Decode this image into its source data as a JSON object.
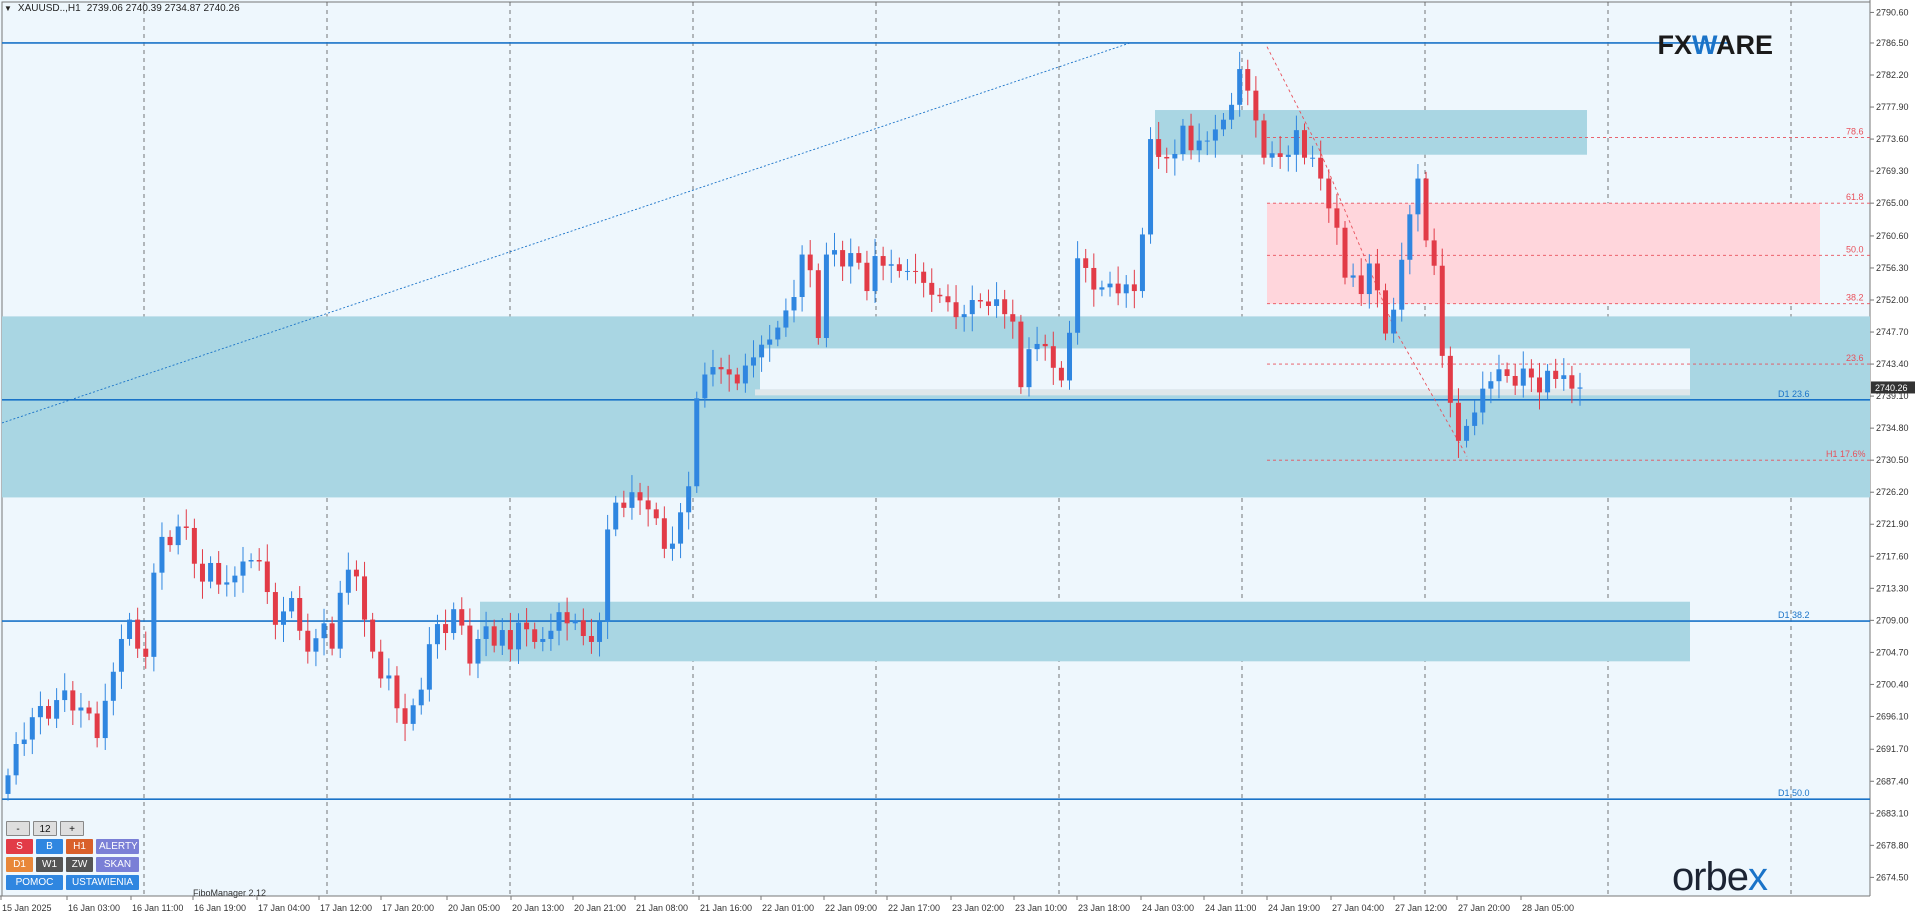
{
  "header": {
    "symbol": "XAUUSD..,H1",
    "ohlc": "2739.06 2740.39 2734.87 2740.26"
  },
  "brand": {
    "left": "FX",
    "mid": "W",
    "right": "ARE"
  },
  "footer_brand": {
    "left": "orbe",
    "x": "x"
  },
  "fibo_manager": "FiboManager 2.12",
  "panel": {
    "minus": "-",
    "count": "12",
    "plus": "+",
    "s": "S",
    "b": "B",
    "h1": "H1",
    "alerty": "ALERTY",
    "d1": "D1",
    "w1": "W1",
    "zw": "ZW",
    "skan": "SKAN",
    "pomoc": "POMOC",
    "ustawienia": "USTAWIENIA",
    "colors": {
      "s": "#e23b47",
      "b": "#2f86e0",
      "h1": "#d9602a",
      "alerty": "#7a7fd6",
      "d1": "#e8873a",
      "w1": "#555555",
      "zw": "#555555",
      "skan": "#7a7fd6",
      "pomoc": "#2f86e0",
      "ustawienia": "#2f86e0"
    }
  },
  "chart_data": {
    "type": "candlestick",
    "y_min": 2672,
    "y_max": 2792,
    "price_labels": [
      "2790.60",
      "2786.50",
      "2782.20",
      "2777.90",
      "2773.60",
      "2769.30",
      "2765.00",
      "2760.60",
      "2756.30",
      "2752.00",
      "2747.70",
      "2743.40",
      "2739.10",
      "2734.80",
      "2730.50",
      "2726.20",
      "2721.90",
      "2717.60",
      "2713.30",
      "2709.00",
      "2704.70",
      "2700.40",
      "2696.10",
      "2691.70",
      "2687.40",
      "2683.10",
      "2678.80",
      "2674.50"
    ],
    "current_price": "2740.26",
    "time_labels": [
      "15 Jan 2025",
      "16 Jan 03:00",
      "16 Jan 11:00",
      "16 Jan 19:00",
      "17 Jan 04:00",
      "17 Jan 12:00",
      "17 Jan 20:00",
      "20 Jan 05:00",
      "20 Jan 13:00",
      "20 Jan 21:00",
      "21 Jan 08:00",
      "21 Jan 16:00",
      "22 Jan 01:00",
      "22 Jan 09:00",
      "22 Jan 17:00",
      "23 Jan 02:00",
      "23 Jan 10:00",
      "23 Jan 18:00",
      "24 Jan 03:00",
      "24 Jan 11:00",
      "24 Jan 19:00",
      "27 Jan 04:00",
      "27 Jan 12:00",
      "27 Jan 20:00",
      "28 Jan 05:00"
    ],
    "fib_levels": [
      {
        "label": "78.6",
        "value": 2773.8
      },
      {
        "label": "61.8",
        "value": 2765.0
      },
      {
        "label": "50.0",
        "value": 2758.0
      },
      {
        "label": "38.2",
        "value": 2751.5
      },
      {
        "label": "23.6",
        "value": 2743.4
      },
      {
        "label": "H1 17.6%",
        "value": 2730.5
      }
    ],
    "level_labels": [
      {
        "label": "D1 23.6",
        "value": 2738.6
      },
      {
        "label": "D1 38.2",
        "value": 2708.9
      },
      {
        "label": "D1 50.0",
        "value": 2685.0
      }
    ],
    "horizontal_lines": [
      2786.5,
      2738.6,
      2708.9,
      2685.0
    ],
    "zones_blue": [
      {
        "from": 2749.8,
        "to": 2725.5
      },
      {
        "from": 2711.5,
        "to": 2703.5
      },
      {
        "from": 2777.5,
        "to": 2771.5
      }
    ],
    "zone_red": {
      "from": 2765.0,
      "to": 2751.5
    },
    "closes": [
      2688.2,
      2692.4,
      2693.0,
      2696.0,
      2697.5,
      2695.8,
      2698.3,
      2699.6,
      2696.9,
      2697.3,
      2696.5,
      2693.2,
      2698.2,
      2702.1,
      2706.5,
      2709.1,
      2705.2,
      2704.1,
      2715.4,
      2720.2,
      2719.1,
      2721.6,
      2721.4,
      2716.6,
      2714.2,
      2716.7,
      2713.8,
      2714.1,
      2715.0,
      2716.9,
      2717.1,
      2716.9,
      2712.8,
      2708.4,
      2710.2,
      2712.0,
      2707.6,
      2704.8,
      2706.6,
      2708.6,
      2705.2,
      2712.7,
      2715.8,
      2714.9,
      2709.1,
      2704.8,
      2701.2,
      2701.6,
      2697.2,
      2695.1,
      2697.6,
      2699.7,
      2705.8,
      2708.5,
      2707.3,
      2710.5,
      2708.3,
      2703.2,
      2706.5,
      2708.2,
      2705.6,
      2707.7,
      2705.1,
      2708.7,
      2707.8,
      2706.1,
      2706.5,
      2707.6,
      2710.1,
      2708.6,
      2709.0,
      2706.9,
      2706.1,
      2708.8,
      2721.2,
      2724.8,
      2724.1,
      2726.2,
      2725.1,
      2723.9,
      2722.7,
      2718.6,
      2719.3,
      2723.5,
      2727.0,
      2738.8,
      2742.0,
      2743.0,
      2742.7,
      2742.0,
      2740.8,
      2743.2,
      2744.3,
      2746.0,
      2746.7,
      2748.3,
      2750.6,
      2752.4,
      2758.1,
      2756.0,
      2746.9,
      2758.1,
      2758.7,
      2756.5,
      2758.3,
      2757.0,
      2753.2,
      2757.9,
      2756.6,
      2756.8,
      2755.9,
      2755.9,
      2755.8,
      2754.3,
      2752.7,
      2752.5,
      2751.7,
      2749.7,
      2750.1,
      2752.0,
      2751.8,
      2751.2,
      2752.1,
      2750.1,
      2749.1,
      2740.3,
      2745.4,
      2746.1,
      2745.8,
      2742.9,
      2741.2,
      2747.6,
      2757.6,
      2756.3,
      2753.4,
      2753.7,
      2754.2,
      2752.9,
      2754.1,
      2753.2,
      2760.8,
      2773.6,
      2771.2,
      2771.0,
      2771.6,
      2775.4,
      2772.1,
      2773.4,
      2773.4,
      2774.9,
      2776.2,
      2778.2,
      2783.0,
      2780.1,
      2776.1,
      2771.1,
      2771.7,
      2771.2,
      2771.5,
      2774.8,
      2771.1,
      2771.1,
      2768.3,
      2764.3,
      2761.7,
      2755.0,
      2755.3,
      2752.8,
      2756.9,
      2753.3,
      2747.5,
      2750.7,
      2757.4,
      2763.5,
      2768.3,
      2760.0,
      2756.6,
      2744.5,
      2738.2,
      2733.1,
      2735.1,
      2736.9,
      2740.1,
      2741.1,
      2742.7,
      2741.8,
      2740.5,
      2742.8,
      2741.6,
      2739.6,
      2742.5,
      2741.4,
      2741.9,
      2740.1,
      2740.26
    ]
  }
}
